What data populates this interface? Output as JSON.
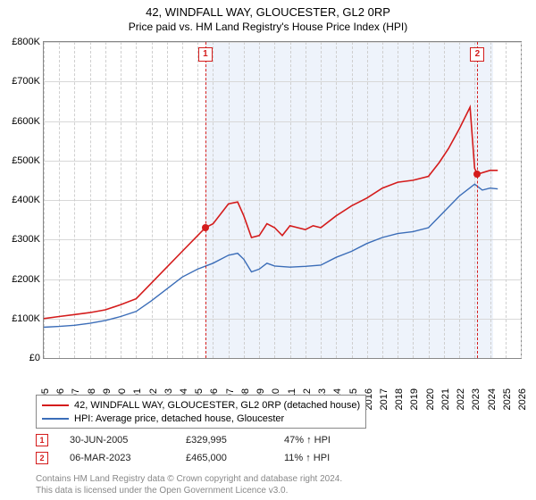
{
  "title": "42, WINDFALL WAY, GLOUCESTER, GL2 0RP",
  "subtitle": "Price paid vs. HM Land Registry's House Price Index (HPI)",
  "chart": {
    "type": "line",
    "background_color": "#ffffff",
    "grid_color": "#d8d8d8",
    "shade_color": "#eef3fb",
    "border_color": "#888888",
    "shade_start_year": 2005.5,
    "shade_end_year": 2024.2,
    "xlim": [
      1995,
      2026
    ],
    "ylim": [
      0,
      800000
    ],
    "ytick_step": 100000,
    "yticks_labels": [
      "£0",
      "£100K",
      "£200K",
      "£300K",
      "£400K",
      "£500K",
      "£600K",
      "£700K",
      "£800K"
    ],
    "xticks": [
      1995,
      1996,
      1997,
      1998,
      1999,
      2000,
      2001,
      2002,
      2003,
      2004,
      2005,
      2006,
      2007,
      2008,
      2009,
      2010,
      2011,
      2012,
      2013,
      2014,
      2015,
      2016,
      2017,
      2018,
      2019,
      2020,
      2021,
      2022,
      2023,
      2024,
      2025,
      2026
    ],
    "series": [
      {
        "name": "42, WINDFALL WAY, GLOUCESTER, GL2 0RP (detached house)",
        "color": "#d41c1c",
        "line_width": 1.6,
        "data": [
          [
            1995,
            100000
          ],
          [
            1996,
            105000
          ],
          [
            1997,
            110000
          ],
          [
            1998,
            115000
          ],
          [
            1999,
            122000
          ],
          [
            2000,
            135000
          ],
          [
            2001,
            150000
          ],
          [
            2002,
            190000
          ],
          [
            2003,
            230000
          ],
          [
            2004,
            270000
          ],
          [
            2005,
            310000
          ],
          [
            2005.5,
            329995
          ],
          [
            2006,
            340000
          ],
          [
            2007,
            390000
          ],
          [
            2007.6,
            395000
          ],
          [
            2008,
            360000
          ],
          [
            2008.5,
            305000
          ],
          [
            2009,
            310000
          ],
          [
            2009.5,
            340000
          ],
          [
            2010,
            330000
          ],
          [
            2010.5,
            310000
          ],
          [
            2011,
            335000
          ],
          [
            2012,
            325000
          ],
          [
            2012.5,
            335000
          ],
          [
            2013,
            330000
          ],
          [
            2014,
            360000
          ],
          [
            2015,
            385000
          ],
          [
            2016,
            405000
          ],
          [
            2017,
            430000
          ],
          [
            2018,
            445000
          ],
          [
            2019,
            450000
          ],
          [
            2020,
            460000
          ],
          [
            2020.7,
            495000
          ],
          [
            2021.3,
            530000
          ],
          [
            2022,
            580000
          ],
          [
            2022.7,
            635000
          ],
          [
            2023,
            480000
          ],
          [
            2023.18,
            465000
          ],
          [
            2024,
            475000
          ],
          [
            2024.5,
            475000
          ]
        ]
      },
      {
        "name": "HPI: Average price, detached house, Gloucester",
        "color": "#3b6db8",
        "line_width": 1.4,
        "data": [
          [
            1995,
            78000
          ],
          [
            1996,
            80000
          ],
          [
            1997,
            83000
          ],
          [
            1998,
            88000
          ],
          [
            1999,
            95000
          ],
          [
            2000,
            105000
          ],
          [
            2001,
            118000
          ],
          [
            2002,
            145000
          ],
          [
            2003,
            175000
          ],
          [
            2004,
            205000
          ],
          [
            2005,
            225000
          ],
          [
            2006,
            240000
          ],
          [
            2007,
            260000
          ],
          [
            2007.6,
            265000
          ],
          [
            2008,
            250000
          ],
          [
            2008.5,
            218000
          ],
          [
            2009,
            225000
          ],
          [
            2009.5,
            240000
          ],
          [
            2010,
            233000
          ],
          [
            2011,
            230000
          ],
          [
            2012,
            232000
          ],
          [
            2013,
            235000
          ],
          [
            2014,
            255000
          ],
          [
            2015,
            270000
          ],
          [
            2016,
            290000
          ],
          [
            2017,
            305000
          ],
          [
            2018,
            315000
          ],
          [
            2019,
            320000
          ],
          [
            2020,
            330000
          ],
          [
            2021,
            370000
          ],
          [
            2022,
            410000
          ],
          [
            2023,
            440000
          ],
          [
            2023.5,
            425000
          ],
          [
            2024,
            430000
          ],
          [
            2024.5,
            428000
          ]
        ]
      }
    ],
    "sale_markers": [
      {
        "n": "1",
        "year": 2005.5,
        "value": 329995,
        "color": "#d41c1c"
      },
      {
        "n": "2",
        "year": 2023.18,
        "value": 465000,
        "color": "#d41c1c"
      }
    ]
  },
  "legend": {
    "rows": [
      {
        "label": "42, WINDFALL WAY, GLOUCESTER, GL2 0RP (detached house)",
        "color": "#d41c1c"
      },
      {
        "label": "HPI: Average price, detached house, Gloucester",
        "color": "#3b6db8"
      }
    ]
  },
  "sales": [
    {
      "n": "1",
      "date": "30-JUN-2005",
      "price": "£329,995",
      "pct": "47% ↑ HPI",
      "color": "#d41c1c"
    },
    {
      "n": "2",
      "date": "06-MAR-2023",
      "price": "£465,000",
      "pct": "11% ↑ HPI",
      "color": "#d41c1c"
    }
  ],
  "footer_line1": "Contains HM Land Registry data © Crown copyright and database right 2024.",
  "footer_line2": "This data is licensed under the Open Government Licence v3.0."
}
